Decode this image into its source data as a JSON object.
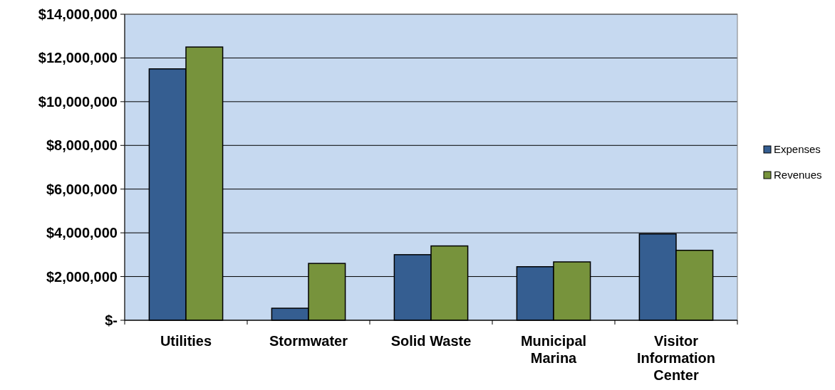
{
  "chart_data": {
    "type": "bar",
    "categories": [
      "Utilities",
      "Stormwater",
      "Solid Waste",
      "Municipal Marina",
      "Visitor Information Center"
    ],
    "series": [
      {
        "name": "Expenses",
        "color": "#355e91",
        "values": [
          11500000,
          550000,
          3000000,
          2450000,
          3950000
        ]
      },
      {
        "name": "Revenues",
        "color": "#77933c",
        "values": [
          12500000,
          2600000,
          3400000,
          2670000,
          3200000
        ]
      }
    ],
    "ylim": [
      0,
      14000000
    ],
    "yticks": [
      {
        "value": 0,
        "label": "$-"
      },
      {
        "value": 2000000,
        "label": "$2,000,000"
      },
      {
        "value": 4000000,
        "label": "$4,000,000"
      },
      {
        "value": 6000000,
        "label": "$6,000,000"
      },
      {
        "value": 8000000,
        "label": "$8,000,000"
      },
      {
        "value": 10000000,
        "label": "$10,000,000"
      },
      {
        "value": 12000000,
        "label": "$12,000,000"
      },
      {
        "value": 14000000,
        "label": "$14,000,000"
      }
    ],
    "grid": "y",
    "legend": "right"
  }
}
